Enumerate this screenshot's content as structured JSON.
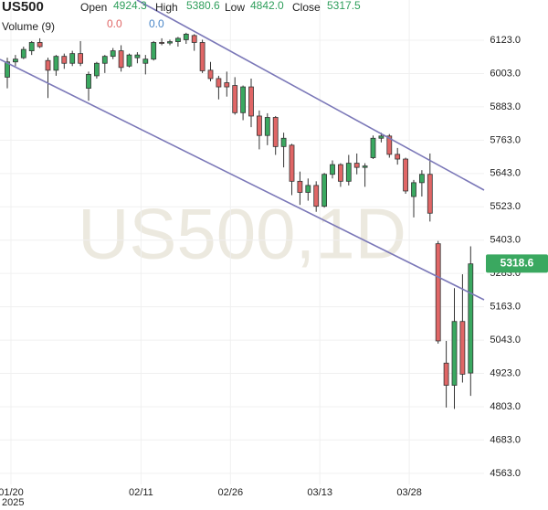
{
  "chart_data": {
    "type": "candlestick",
    "symbol": "US500",
    "watermark": "US500,1D",
    "header": {
      "open_label": "Open",
      "open": "4924.3",
      "high_label": "High",
      "high": "5380.6",
      "low_label": "Low",
      "low": "4842.0",
      "close_label": "Close",
      "close": "5317.5",
      "volume_label": "Volume (9)",
      "volume_a": "0.0",
      "volume_b": "0.0"
    },
    "last_price": 5318.6,
    "up_color": "#3aa860",
    "down_color": "#e06666",
    "categories": [
      "01/20",
      null,
      null,
      null,
      null,
      null,
      null,
      null,
      null,
      null,
      null,
      null,
      null,
      null,
      null,
      null,
      "02/11",
      null,
      null,
      null,
      null,
      null,
      null,
      null,
      null,
      null,
      null,
      "02/26",
      null,
      null,
      null,
      null,
      null,
      null,
      null,
      null,
      null,
      null,
      "03/13",
      null,
      null,
      null,
      null,
      null,
      null,
      null,
      null,
      null,
      null,
      "03/28",
      null,
      null,
      null,
      null,
      null,
      null,
      null,
      null
    ],
    "year_label": "2025",
    "open": [
      5990,
      6045,
      6060,
      6085,
      6115,
      6050,
      6015,
      6065,
      6040,
      6075,
      5950,
      5995,
      6040,
      6065,
      6085,
      6030,
      6060,
      6040,
      6055,
      6115,
      6113,
      6118,
      6125,
      6140,
      6115,
      6015,
      5985,
      5970,
      5960,
      5862,
      5955,
      5850,
      5780,
      5845,
      5740,
      5745,
      5615,
      5575,
      5600,
      5525,
      5640,
      5675,
      5615,
      5680,
      5665,
      5700,
      5770,
      5778,
      5712,
      5695,
      5560,
      5610,
      5640,
      5390,
      4960,
      4880,
      5110,
      4924.3
    ],
    "high": [
      6060,
      6070,
      6100,
      6120,
      6130,
      6060,
      6070,
      6075,
      6085,
      6120,
      6010,
      6045,
      6070,
      6095,
      6105,
      6075,
      6080,
      6070,
      6120,
      6130,
      6125,
      6135,
      6150,
      6145,
      6125,
      6045,
      5995,
      6010,
      5990,
      5960,
      5985,
      5870,
      5860,
      5850,
      5790,
      5750,
      5650,
      5625,
      5615,
      5645,
      5690,
      5680,
      5710,
      5715,
      5680,
      5780,
      5790,
      5785,
      5735,
      5700,
      5620,
      5655,
      5715,
      5400,
      5040,
      5230,
      5280,
      5380.6
    ],
    "low": [
      5950,
      6030,
      6055,
      6070,
      6095,
      5915,
      5995,
      6020,
      6030,
      6030,
      5905,
      5985,
      6005,
      6055,
      6010,
      6025,
      6040,
      6000,
      6050,
      6105,
      6105,
      6100,
      6110,
      6085,
      6005,
      5975,
      5910,
      5920,
      5855,
      5835,
      5810,
      5730,
      5745,
      5710,
      5665,
      5565,
      5530,
      5545,
      5505,
      5520,
      5625,
      5595,
      5600,
      5640,
      5595,
      5695,
      5755,
      5700,
      5675,
      5570,
      5485,
      5560,
      5470,
      5030,
      4800,
      4795,
      4890,
      4842
    ],
    "close": [
      6045,
      6055,
      6090,
      6115,
      6100,
      6015,
      6065,
      6040,
      6075,
      6040,
      6000,
      6040,
      6065,
      6085,
      6025,
      6070,
      6070,
      6055,
      6115,
      6113,
      6118,
      6130,
      6145,
      6115,
      6013,
      5985,
      5955,
      5955,
      5862,
      5955,
      5850,
      5780,
      5845,
      5740,
      5770,
      5615,
      5575,
      5600,
      5525,
      5640,
      5675,
      5615,
      5680,
      5665,
      5670,
      5770,
      5778,
      5712,
      5695,
      5580,
      5610,
      5640,
      5500,
      5040,
      4880,
      5110,
      4920,
      5317.5
    ],
    "ylim": [
      4523,
      6268
    ],
    "yticks": [
      {
        "value": 6123,
        "label": "6123.0"
      },
      {
        "value": 6003,
        "label": "6003.0"
      },
      {
        "value": 5883,
        "label": "5883.0"
      },
      {
        "value": 5763,
        "label": "5763.0"
      },
      {
        "value": 5643,
        "label": "5643.0"
      },
      {
        "value": 5523,
        "label": "5523.0"
      },
      {
        "value": 5403,
        "label": "5403.0"
      },
      {
        "value": 5283,
        "label": "5283.0"
      },
      {
        "value": 5163,
        "label": "5163.0"
      },
      {
        "value": 5043,
        "label": "5043.0"
      },
      {
        "value": 4923,
        "label": "4923.0"
      },
      {
        "value": 4803,
        "label": "4803.0"
      },
      {
        "value": 4683,
        "label": "4683.0"
      },
      {
        "value": 4563,
        "label": "4563.0"
      }
    ],
    "grid": true
  }
}
